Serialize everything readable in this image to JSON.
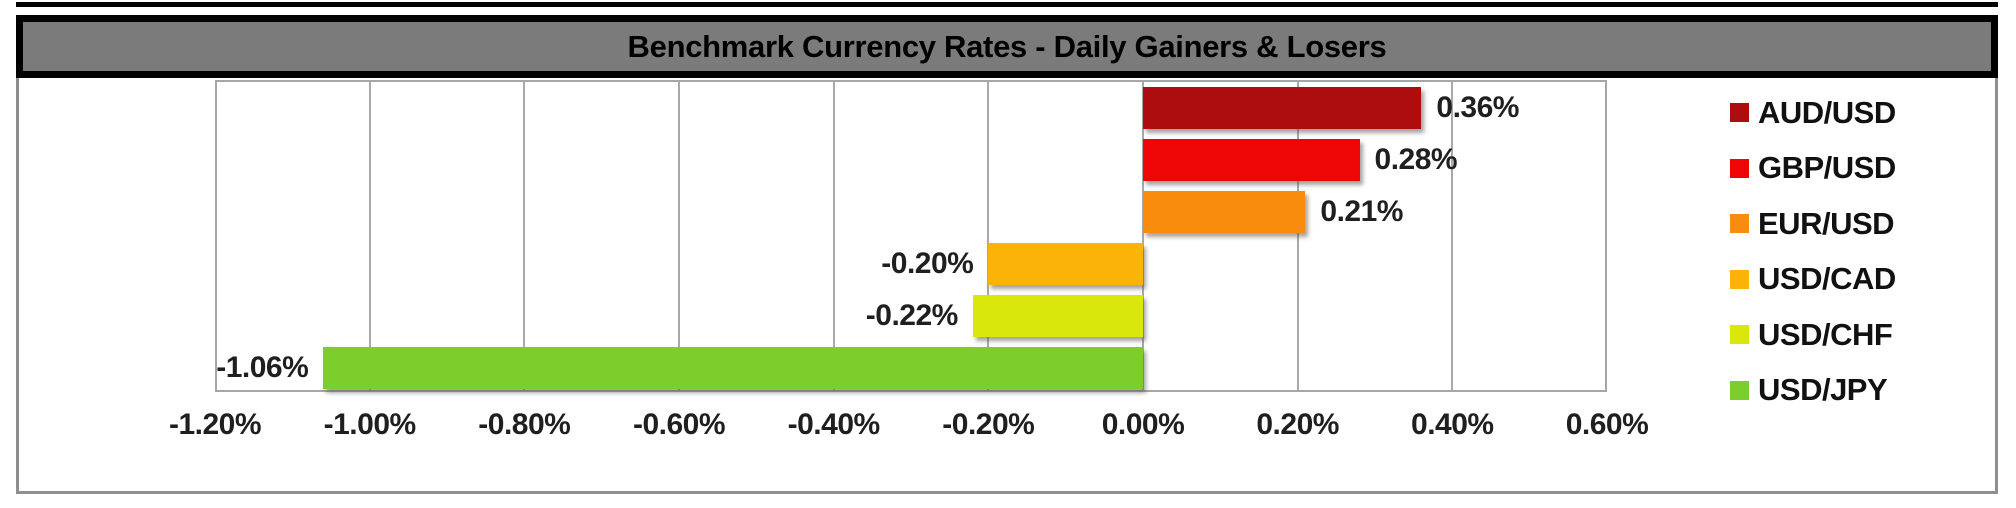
{
  "title": "Benchmark Currency Rates - Daily Gainers & Losers",
  "colors": {
    "title_bar_fill": "#7b7b7b",
    "title_bar_border": "#000000",
    "frame_border": "#8f8f8f",
    "gridline": "#a9a9a9",
    "label_text": "#1f1f1f"
  },
  "chart_data": {
    "type": "bar",
    "orientation": "horizontal",
    "title": "Benchmark Currency Rates - Daily Gainers & Losers",
    "xlabel": "",
    "ylabel": "",
    "categories": [
      "AUD/USD",
      "GBP/USD",
      "EUR/USD",
      "USD/CAD",
      "USD/CHF",
      "USD/JPY"
    ],
    "values": [
      0.36,
      0.28,
      0.21,
      -0.2,
      -0.22,
      -1.06
    ],
    "data_labels": [
      "0.36%",
      "0.28%",
      "0.21%",
      "-0.20%",
      "-0.22%",
      "-1.06%"
    ],
    "bar_colors": [
      "#ae0d0f",
      "#ee0505",
      "#f98b0d",
      "#fab306",
      "#d9e70b",
      "#7bce2c"
    ],
    "xlim": [
      -1.2,
      0.6
    ],
    "x_ticks": [
      -1.2,
      -1.0,
      -0.8,
      -0.6,
      -0.4,
      -0.2,
      0.0,
      0.2,
      0.4,
      0.6
    ],
    "x_tick_labels": [
      "-1.20%",
      "-1.00%",
      "-0.80%",
      "-0.60%",
      "-0.40%",
      "-0.20%",
      "0.00%",
      "0.20%",
      "0.40%",
      "0.60%"
    ],
    "grid": true,
    "legend_position": "right",
    "legend": [
      {
        "label": "AUD/USD",
        "color": "#ae0d0f"
      },
      {
        "label": "GBP/USD",
        "color": "#ee0505"
      },
      {
        "label": "EUR/USD",
        "color": "#f98b0d"
      },
      {
        "label": "USD/CAD",
        "color": "#fab306"
      },
      {
        "label": "USD/CHF",
        "color": "#d9e70b"
      },
      {
        "label": "USD/JPY",
        "color": "#7bce2c"
      }
    ]
  }
}
